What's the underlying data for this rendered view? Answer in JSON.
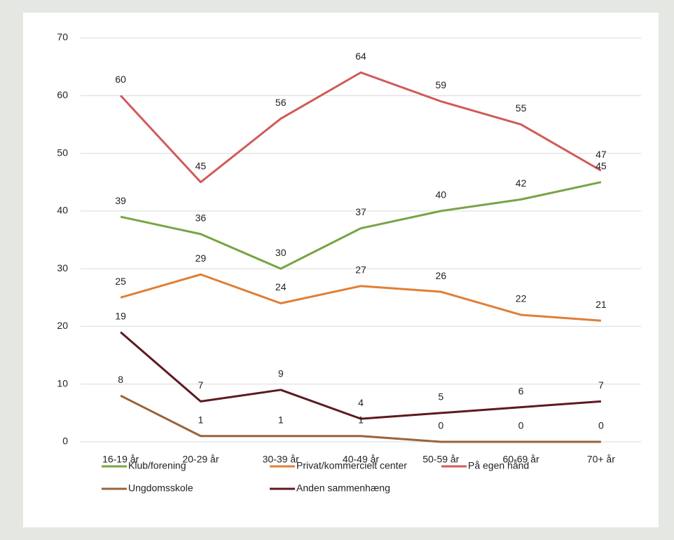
{
  "chart_data": {
    "type": "line",
    "categories": [
      "16-19 år",
      "20-29 år",
      "30-39 år",
      "40-49 år",
      "50-59 år",
      "60-69 år",
      "70+ år"
    ],
    "series": [
      {
        "name": "Klub/forening",
        "color": "#78a444",
        "values": [
          39,
          36,
          30,
          37,
          40,
          42,
          45
        ]
      },
      {
        "name": "Privat/kommercielt center",
        "color": "#e07f36",
        "values": [
          25,
          29,
          24,
          27,
          26,
          22,
          21
        ]
      },
      {
        "name": "På egen hånd",
        "color": "#d05b58",
        "values": [
          60,
          45,
          56,
          64,
          59,
          55,
          47
        ]
      },
      {
        "name": "Ungdomsskole",
        "color": "#9b6337",
        "values": [
          8,
          1,
          1,
          1,
          0,
          0,
          0
        ]
      },
      {
        "name": "Anden sammenhæng",
        "color": "#5c1a20",
        "values": [
          19,
          7,
          9,
          4,
          5,
          6,
          7
        ]
      }
    ],
    "ylim": [
      0,
      70
    ],
    "yticks": [
      0,
      10,
      20,
      30,
      40,
      50,
      60,
      70
    ],
    "grid": true,
    "data_labels": true
  }
}
